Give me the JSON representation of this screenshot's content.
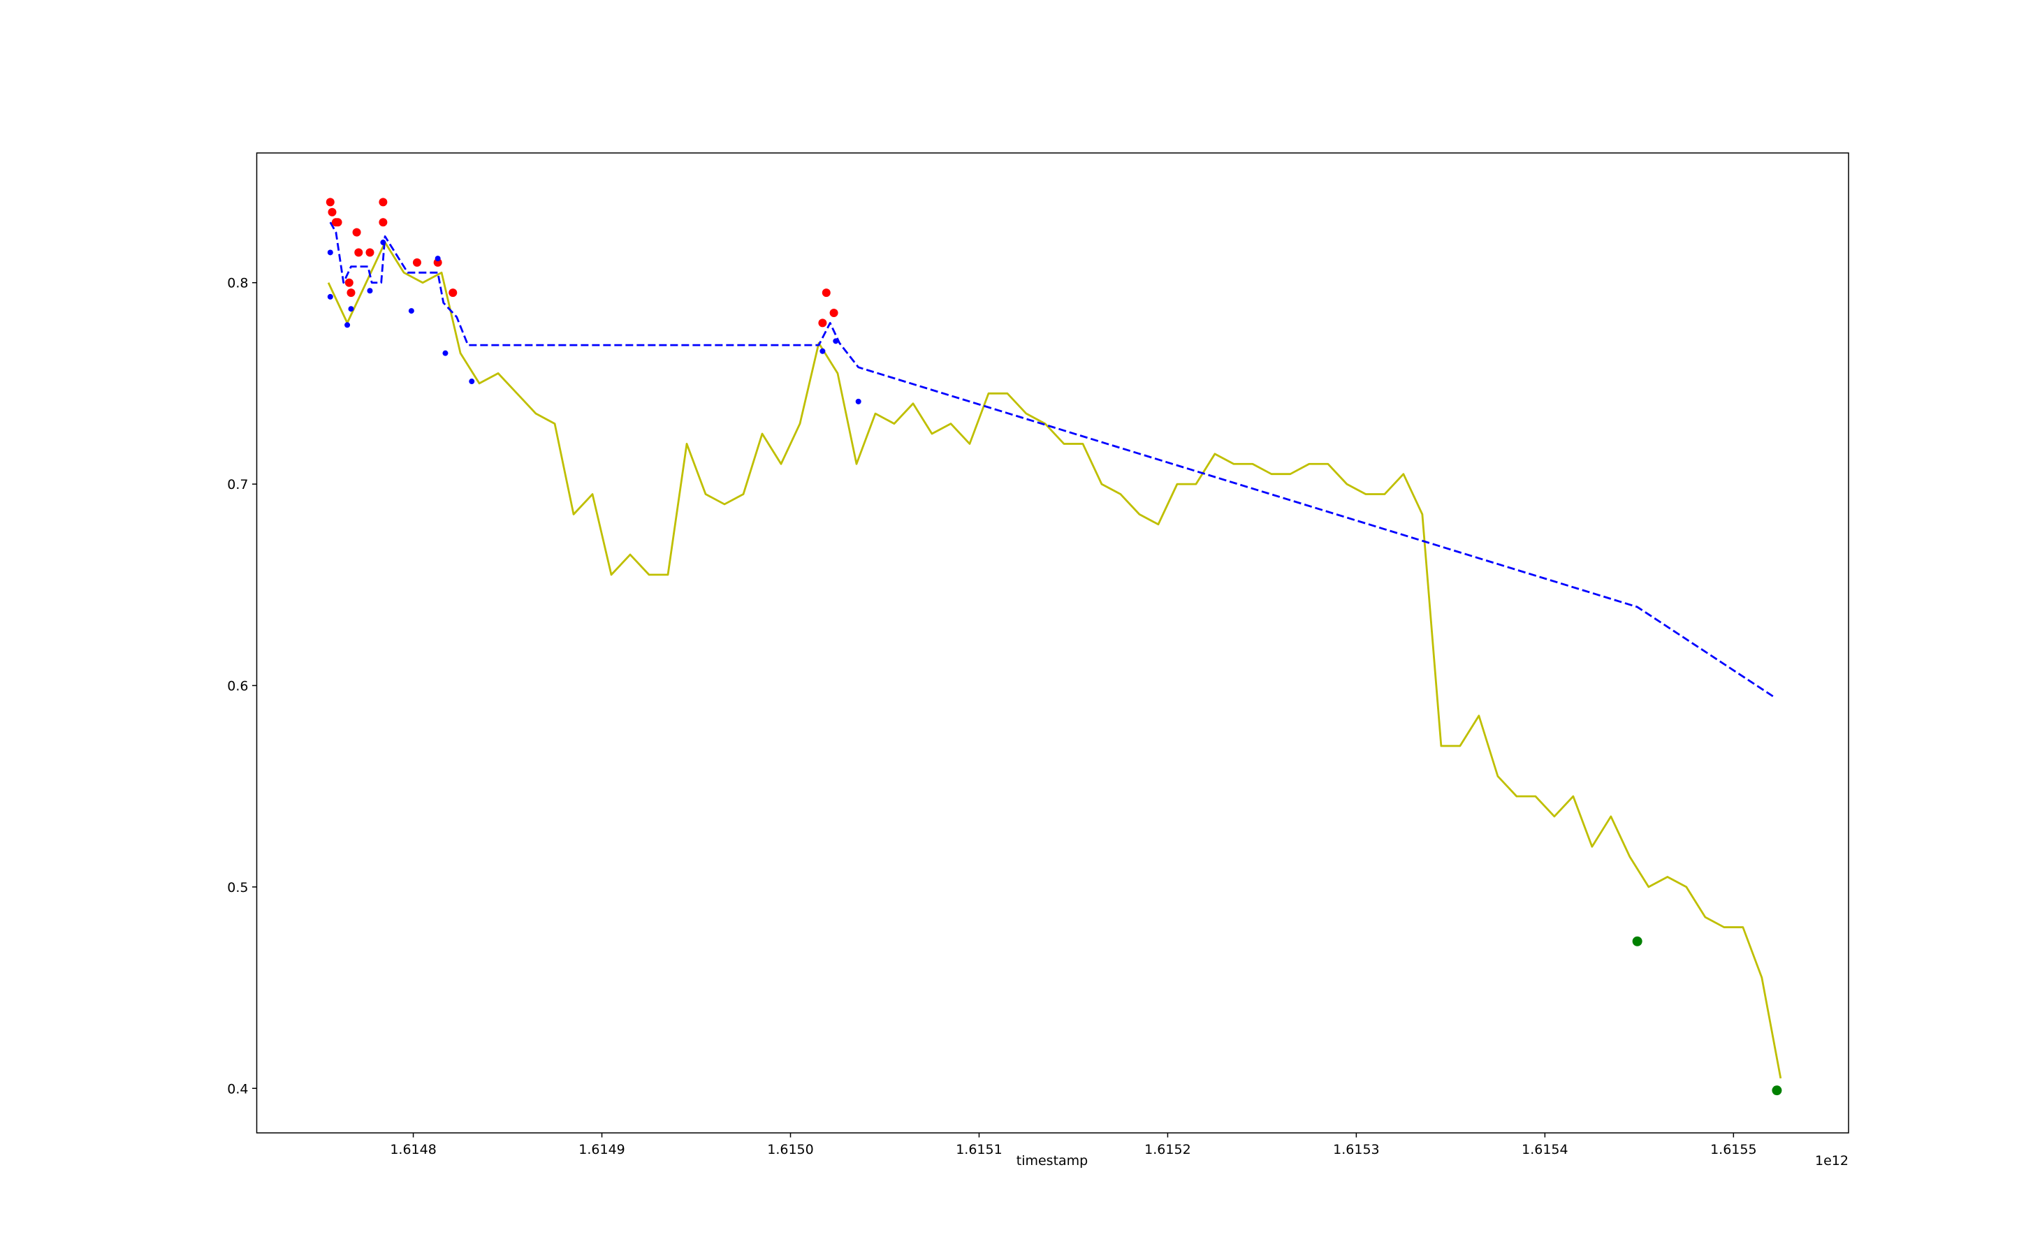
{
  "chart_data": {
    "type": "line",
    "xlabel": "timestamp",
    "x_offset_label": "1e12",
    "xlim": [
      1.614717,
      1.615561
    ],
    "ylim": [
      0.3779,
      0.8644
    ],
    "xticks": [
      1.6148,
      1.6149,
      {
        "value": 1.615,
        "label": "1.6150"
      },
      1.6151,
      1.6152,
      1.6153,
      1.6154,
      1.6155
    ],
    "yticks": [
      0.4,
      0.5,
      0.6,
      0.7,
      0.8
    ],
    "grid": false,
    "series": [
      {
        "color": "#bfbf00",
        "style": "line",
        "x": [
          1.614755,
          1.614765,
          1.614775,
          1.614785,
          1.614795,
          1.614805,
          1.614815,
          1.614825,
          1.614835,
          1.614845,
          1.614855,
          1.614865,
          1.614875,
          1.614885,
          1.614895,
          1.614905,
          1.614915,
          1.614925,
          1.614935,
          1.614945,
          1.614955,
          1.614965,
          1.614975,
          1.614985,
          1.614995,
          1.615005,
          1.615015,
          1.615025,
          1.615035,
          1.615045,
          1.615055,
          1.615065,
          1.615075,
          1.615085,
          1.615095,
          1.615105,
          1.615115,
          1.615125,
          1.615135,
          1.615145,
          1.615155,
          1.615165,
          1.615175,
          1.615185,
          1.615195,
          1.615205,
          1.615215,
          1.615225,
          1.615235,
          1.615245,
          1.615255,
          1.615265,
          1.615275,
          1.615285,
          1.615295,
          1.615305,
          1.615315,
          1.615325,
          1.615335,
          1.615345,
          1.615355,
          1.615365,
          1.615375,
          1.615385,
          1.615395,
          1.615405,
          1.615415,
          1.615425,
          1.615435,
          1.615445,
          1.615455,
          1.615465,
          1.615475,
          1.615485,
          1.615495,
          1.615505,
          1.615515,
          1.615525
        ],
        "values": [
          0.8,
          0.78,
          0.8,
          0.82,
          0.805,
          0.8,
          0.805,
          0.765,
          0.75,
          0.755,
          0.745,
          0.735,
          0.73,
          0.685,
          0.695,
          0.655,
          0.665,
          0.655,
          0.655,
          0.72,
          0.695,
          0.69,
          0.695,
          0.725,
          0.71,
          0.73,
          0.77,
          0.755,
          0.71,
          0.735,
          0.73,
          0.74,
          0.725,
          0.73,
          0.72,
          0.745,
          0.745,
          0.735,
          0.73,
          0.72,
          0.72,
          0.7,
          0.695,
          0.685,
          0.68,
          0.7,
          0.7,
          0.715,
          0.71,
          0.71,
          0.705,
          0.705,
          0.71,
          0.71,
          0.7,
          0.695,
          0.695,
          0.705,
          0.685,
          0.57,
          0.57,
          0.585,
          0.555,
          0.545,
          0.545,
          0.535,
          0.545,
          0.52,
          0.535,
          0.515,
          0.5,
          0.505,
          0.5,
          0.485,
          0.48,
          0.48,
          0.455,
          0.405
        ]
      },
      {
        "color": "#0000ff",
        "style": "dashed",
        "x": [
          1.614756,
          1.614759,
          1.614763,
          1.614767,
          1.614776,
          1.614778,
          1.614783,
          1.614785,
          1.614797,
          1.614813,
          1.614816,
          1.614823,
          1.614829,
          1.615015,
          1.615021,
          1.615026,
          1.615036,
          1.615449,
          1.615522
        ],
        "values": [
          0.83,
          0.825,
          0.8,
          0.808,
          0.808,
          0.8,
          0.8,
          0.823,
          0.805,
          0.805,
          0.79,
          0.783,
          0.769,
          0.769,
          0.78,
          0.77,
          0.758,
          0.639,
          0.594
        ]
      },
      {
        "color": "#ff0000",
        "style": "markers",
        "size": 6,
        "x": [
          1.614756,
          1.614757,
          1.614759,
          1.61476,
          1.614766,
          1.614767,
          1.61477,
          1.614771,
          1.614777,
          1.614784,
          1.614784,
          1.614802,
          1.614813,
          1.614821,
          1.615017,
          1.615019,
          1.615023
        ],
        "values": [
          0.84,
          0.835,
          0.83,
          0.83,
          0.8,
          0.795,
          0.825,
          0.815,
          0.815,
          0.84,
          0.83,
          0.81,
          0.81,
          0.795,
          0.78,
          0.795,
          0.785
        ]
      },
      {
        "color": "#0000ff",
        "style": "markers",
        "size": 4,
        "x": [
          1.614756,
          1.614756,
          1.614765,
          1.614767,
          1.614777,
          1.614784,
          1.614799,
          1.614813,
          1.614817,
          1.614831,
          1.615017,
          1.615024,
          1.615036
        ],
        "values": [
          0.793,
          0.815,
          0.779,
          0.787,
          0.796,
          0.82,
          0.786,
          0.812,
          0.765,
          0.751,
          0.766,
          0.771,
          0.741
        ]
      },
      {
        "color": "#008000",
        "style": "markers",
        "size": 7,
        "x": [
          1.615449,
          1.615523
        ],
        "values": [
          0.473,
          0.399
        ]
      }
    ]
  }
}
